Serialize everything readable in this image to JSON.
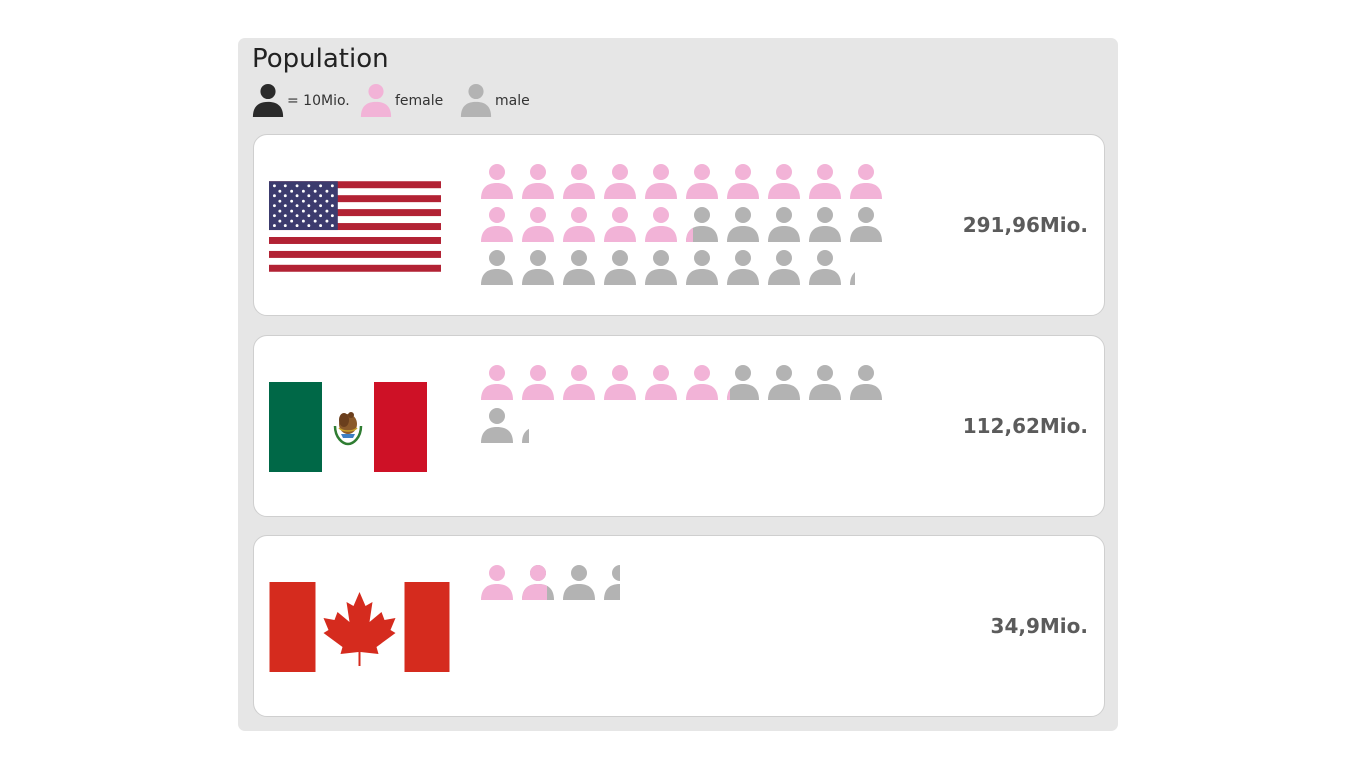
{
  "title": "Population",
  "legend": {
    "unit_label": "= 10Mio.",
    "female_label": "female",
    "male_label": "male"
  },
  "colors": {
    "female": "#f2b3d7",
    "male": "#b3b3b3",
    "unit": "#2b2b2b"
  },
  "chart_data": {
    "type": "pictogram",
    "unit_value": 10,
    "unit_label": "= 10Mio.",
    "series_names": [
      "female",
      "male"
    ],
    "categories": [
      "United States",
      "Mexico",
      "Canada"
    ],
    "rows": [
      {
        "country": "United States",
        "flag_icon": "us-flag-icon",
        "total_label": "291,96Mio.",
        "total": 291.96,
        "female": 152.5,
        "male": 139.46
      },
      {
        "country": "Mexico",
        "flag_icon": "mexico-flag-icon",
        "total_label": "112,62Mio.",
        "total": 112.62,
        "female": 61.5,
        "male": 51.12
      },
      {
        "country": "Canada",
        "flag_icon": "canada-flag-icon",
        "total_label": "34,9Mio.",
        "total": 34.9,
        "female": 17.5,
        "male": 17.4
      }
    ]
  }
}
